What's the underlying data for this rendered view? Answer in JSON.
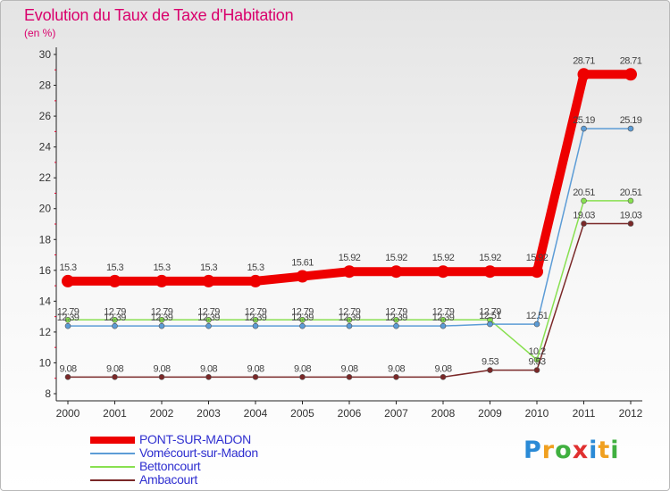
{
  "chart_data": {
    "type": "line",
    "title": "Evolution du Taux de Taxe d'Habitation",
    "subtitle": "(en %)",
    "xlabel": "",
    "ylabel": "",
    "ylim": [
      8,
      30
    ],
    "yticks": [
      "8",
      "10",
      "12",
      "14",
      "16",
      "18",
      "20",
      "22",
      "24",
      "26",
      "28",
      "30"
    ],
    "categories": [
      "2000",
      "2001",
      "2002",
      "2003",
      "2004",
      "2005",
      "2006",
      "2007",
      "2008",
      "2009",
      "2010",
      "2011",
      "2012"
    ],
    "series": [
      {
        "name": "PONT-SUR-MADON",
        "color": "#ee0000",
        "values": [
          15.3,
          15.3,
          15.3,
          15.3,
          15.3,
          15.61,
          15.92,
          15.92,
          15.92,
          15.92,
          15.92,
          28.71,
          28.71
        ],
        "labels": [
          "15.3",
          "15.3",
          "15.3",
          "15.3",
          "15.3",
          "15.61",
          "15.92",
          "15.92",
          "15.92",
          "15.92",
          "15.92",
          "28.71",
          "28.71"
        ]
      },
      {
        "name": "Vomécourt-sur-Madon",
        "color": "#5c9cd6",
        "values": [
          12.39,
          12.39,
          12.39,
          12.39,
          12.39,
          12.39,
          12.39,
          12.39,
          12.39,
          12.51,
          12.51,
          25.19,
          25.19
        ],
        "labels": [
          "12.39",
          "12.39",
          "12.39",
          "12.39",
          "12.39",
          "12.39",
          "12.39",
          "12.39",
          "12.39",
          "12.51",
          "12.51",
          "25.19",
          "25.19"
        ]
      },
      {
        "name": "Bettoncourt",
        "color": "#88e050",
        "values": [
          12.79,
          12.79,
          12.79,
          12.79,
          12.79,
          12.79,
          12.79,
          12.79,
          12.79,
          12.79,
          10.2,
          20.51,
          20.51
        ],
        "labels": [
          "12.79",
          "12.79",
          "12.79",
          "12.79",
          "12.79",
          "12.79",
          "12.79",
          "12.79",
          "12.79",
          "12.79",
          "10.2",
          "20.51",
          "20.51"
        ]
      },
      {
        "name": "Ambacourt",
        "color": "#7a2828",
        "values": [
          9.08,
          9.08,
          9.08,
          9.08,
          9.08,
          9.08,
          9.08,
          9.08,
          9.08,
          9.53,
          9.53,
          19.03,
          19.03
        ],
        "labels": [
          "9.08",
          "9.08",
          "9.08",
          "9.08",
          "9.08",
          "9.08",
          "9.08",
          "9.08",
          "9.08",
          "9.53",
          "9.53",
          "19.03",
          "19.03"
        ]
      }
    ]
  },
  "logo": {
    "letters": [
      "P",
      "r",
      "o",
      "x",
      "i",
      "t",
      "i"
    ],
    "colors": [
      "#2a8ad6",
      "#f0a020",
      "#40b040",
      "#e03030",
      "#2a8ad6",
      "#f0a020",
      "#40b040"
    ]
  }
}
